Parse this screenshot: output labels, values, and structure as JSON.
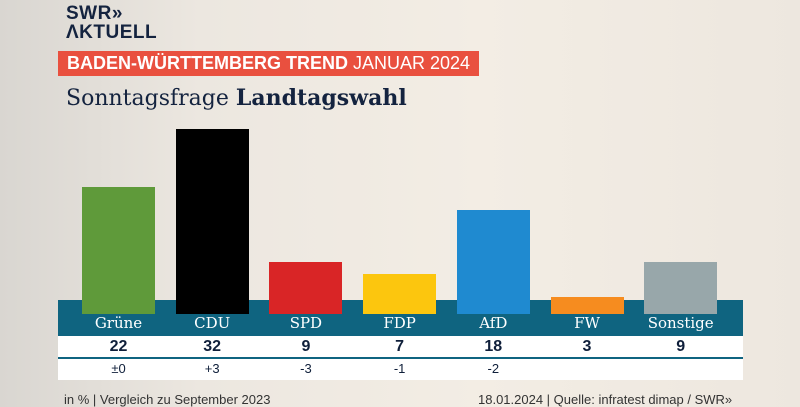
{
  "logo": {
    "line1": "SWR»",
    "line2": "ΛKTUELL"
  },
  "banner": {
    "bold": "BADEN-WÜRTTEMBERG TREND",
    "normal": "JANUAR 2024"
  },
  "title": {
    "normal": "Sonntagsfrage",
    "bold": "Landtagswahl"
  },
  "chart_data": {
    "type": "bar",
    "categories": [
      "Grüne",
      "CDU",
      "SPD",
      "FDP",
      "AfD",
      "FW",
      "Sonstige"
    ],
    "values": [
      22,
      32,
      9,
      7,
      18,
      3,
      9
    ],
    "changes": [
      "±0",
      "+3",
      "-3",
      "-1",
      "-2",
      "",
      ""
    ],
    "colors": [
      "#5f9a3a",
      "#000000",
      "#d92526",
      "#fcc60e",
      "#1f8ad0",
      "#f68c1f",
      "#98a7aa"
    ],
    "ylim": [
      0,
      32
    ],
    "grid": false
  },
  "footer": {
    "left": "in % | Vergleich zu September 2023",
    "right": "18.01.2024 | Quelle: infratest dimap / SWR»"
  }
}
